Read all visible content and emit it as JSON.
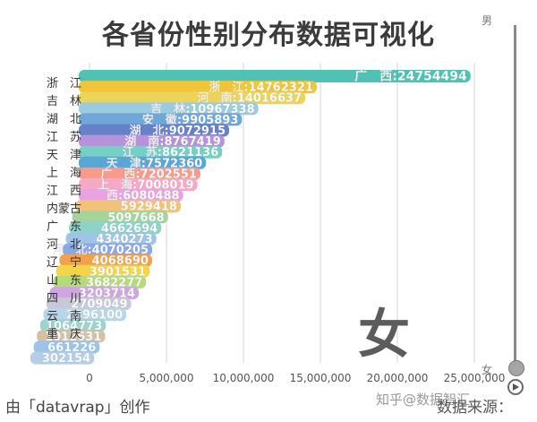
{
  "title": "各省份性别分布数据可视化",
  "legend_top": "男",
  "legend_bottom": "女",
  "current_label": "女",
  "credit": "由「datavrap」创作",
  "source": "数据来源：",
  "watermark": "知乎@数据智汇",
  "chart_data": {
    "type": "bar",
    "orientation": "horizontal",
    "title": "各省份性别分布数据可视化",
    "xlabel": "",
    "ylabel": "",
    "xlim": [
      0,
      25000000
    ],
    "x_ticks": [
      "0",
      "5,000,000",
      "10,000,000",
      "15,000,000",
      "20,000,000",
      "25,000,000"
    ],
    "x_tick_values": [
      0,
      5000000,
      10000000,
      15000000,
      20000000,
      25000000
    ],
    "grid": true,
    "axis_labels": [
      "浙　江",
      "吉　林",
      "湖　北",
      "江　苏",
      "天　津",
      "上　海",
      "江　西",
      "内蒙古",
      "广　东",
      "河　北",
      "辽　宁",
      "山　东",
      "四　川",
      "云　南",
      "重　庆"
    ],
    "bars": [
      {
        "label": "广　西:24754494",
        "value": 24754494,
        "color": "#4fc2b5"
      },
      {
        "label": "浙　江:14762321",
        "value": 14762321,
        "color": "#f0c537"
      },
      {
        "label": "河　南:14016637",
        "value": 14016637,
        "color": "#ecd45b"
      },
      {
        "label": "吉　林:10967338",
        "value": 10967338,
        "color": "#9bcbe0"
      },
      {
        "label": "安　徽:9905893",
        "value": 9905893,
        "color": "#6fa7d8"
      },
      {
        "label": "湖　北:9072915",
        "value": 9072915,
        "color": "#6582c9"
      },
      {
        "label": "湖　南:8767419",
        "value": 8767419,
        "color": "#b791d9"
      },
      {
        "label": "江　苏:8621136",
        "value": 8621136,
        "color": "#74cfc4"
      },
      {
        "label": "天　津:7572360",
        "value": 7572360,
        "color": "#5aa6d6"
      },
      {
        "label": "广　西:7202551",
        "value": 7202551,
        "color": "#f79c8d"
      },
      {
        "label": "上　海:7008019",
        "value": 7008019,
        "color": "#f5a9c4"
      },
      {
        "label": "西:6080488",
        "value": 6080488,
        "color": "#e9a2e3"
      },
      {
        "label": "5929418",
        "value": 5929418,
        "color": "#f1c37a"
      },
      {
        "label": "5097668",
        "value": 5097668,
        "color": "#a6d39b"
      },
      {
        "label": "4662694",
        "value": 4662694,
        "color": "#8ed2c8"
      },
      {
        "label": "4340273",
        "value": 4340273,
        "color": "#9ec4e6"
      },
      {
        "label": "河　北:4070205",
        "value": 4070205,
        "color": "#8aa7e6"
      },
      {
        "label": "4068690",
        "value": 4068690,
        "color": "#f2a24d"
      },
      {
        "label": "3901531",
        "value": 3901531,
        "color": "#f5d34a"
      },
      {
        "label": "3682277",
        "value": 3682277,
        "color": "#b5db7a"
      },
      {
        "label": "3203714",
        "value": 3203714,
        "color": "#cfa7e0"
      },
      {
        "label": "2709049",
        "value": 2709049,
        "color": "#c8c8d8"
      },
      {
        "label": "2396100",
        "value": 2396100,
        "color": "#b7d6e9"
      },
      {
        "label": "1064773",
        "value": 1064773,
        "color": "#9bd3cf"
      },
      {
        "label": "1012631",
        "value": 1012631,
        "color": "#d3c0a5"
      },
      {
        "label": "661226",
        "value": 661226,
        "color": "#9cc4e8"
      },
      {
        "label": "302154",
        "value": 302154,
        "color": "#b6cde6"
      }
    ]
  }
}
